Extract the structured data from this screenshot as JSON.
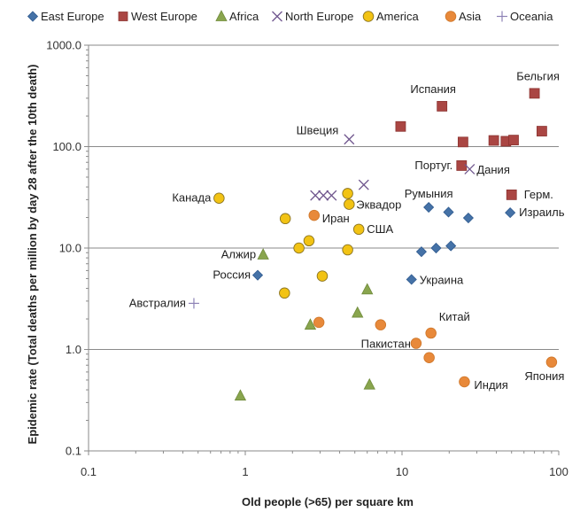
{
  "chart_data": {
    "type": "scatter",
    "title": "",
    "xlabel": "Old people (>65) per square km",
    "ylabel": "Epidemic rate (Total deaths per million by day 28 after the 10th death)",
    "xscale": "log",
    "yscale": "log",
    "xlim": [
      0.1,
      100
    ],
    "ylim": [
      0.1,
      1000
    ],
    "x_ticks": [
      "0.1",
      "1",
      "10",
      "100"
    ],
    "y_ticks": [
      "0.1",
      "1.0",
      "10.0",
      "100.0",
      "1000.0"
    ],
    "grid": "horizontal major gridlines",
    "legend_position": "top",
    "series": [
      {
        "name": "East Europe",
        "marker": "diamond",
        "color": "#4572A7",
        "stroke": "#2f5a8f",
        "points": [
          {
            "x": 1.2,
            "y": 5.4,
            "label": "Россия"
          },
          {
            "x": 11.5,
            "y": 4.9,
            "label": "Украина"
          },
          {
            "x": 13.3,
            "y": 9.2
          },
          {
            "x": 16.5,
            "y": 10.0
          },
          {
            "x": 20.5,
            "y": 10.5
          },
          {
            "x": 14.8,
            "y": 25.2,
            "label": "Румыния"
          },
          {
            "x": 19.8,
            "y": 22.6
          },
          {
            "x": 26.5,
            "y": 19.8
          },
          {
            "x": 49.0,
            "y": 22.3,
            "label": "Израиль"
          }
        ]
      },
      {
        "name": "West Europe",
        "marker": "square",
        "color": "#AA4643",
        "stroke": "#8c3431",
        "points": [
          {
            "x": 9.8,
            "y": 158
          },
          {
            "x": 18.0,
            "y": 250,
            "label": "Испания"
          },
          {
            "x": 70.0,
            "y": 335,
            "label": "Бельгия"
          },
          {
            "x": 24.5,
            "y": 111
          },
          {
            "x": 38.5,
            "y": 115
          },
          {
            "x": 46.0,
            "y": 113
          },
          {
            "x": 51.5,
            "y": 116
          },
          {
            "x": 78.0,
            "y": 142
          },
          {
            "x": 24.0,
            "y": 65,
            "label": "Португ."
          },
          {
            "x": 50.0,
            "y": 33.5,
            "label": "Герм."
          }
        ]
      },
      {
        "name": "Africa",
        "marker": "triangle",
        "color": "#89A54E",
        "stroke": "#6f8a3a",
        "points": [
          {
            "x": 1.3,
            "y": 8.6,
            "label": "Алжир"
          },
          {
            "x": 6.0,
            "y": 3.9
          },
          {
            "x": 5.2,
            "y": 2.3
          },
          {
            "x": 2.6,
            "y": 1.75
          },
          {
            "x": 0.93,
            "y": 0.35
          },
          {
            "x": 6.2,
            "y": 0.45
          }
        ]
      },
      {
        "name": "North Europe",
        "marker": "x",
        "color": "#71588F",
        "stroke": "#71588F",
        "points": [
          {
            "x": 4.6,
            "y": 118,
            "label": "Швеция"
          },
          {
            "x": 27.0,
            "y": 60,
            "label": "Дания"
          },
          {
            "x": 5.7,
            "y": 42
          },
          {
            "x": 2.8,
            "y": 33
          },
          {
            "x": 3.15,
            "y": 33
          },
          {
            "x": 3.55,
            "y": 33
          }
        ]
      },
      {
        "name": "America",
        "marker": "circle",
        "color": "#F2C314",
        "stroke": "#8a7320",
        "points": [
          {
            "x": 0.68,
            "y": 31,
            "label": "Канада"
          },
          {
            "x": 4.5,
            "y": 34.5
          },
          {
            "x": 4.6,
            "y": 27,
            "label": "Эквадор"
          },
          {
            "x": 1.8,
            "y": 19.5
          },
          {
            "x": 5.3,
            "y": 15.3,
            "label": "США"
          },
          {
            "x": 2.55,
            "y": 11.8
          },
          {
            "x": 2.2,
            "y": 10.0
          },
          {
            "x": 4.5,
            "y": 9.6
          },
          {
            "x": 3.1,
            "y": 5.3
          },
          {
            "x": 1.78,
            "y": 3.6
          }
        ]
      },
      {
        "name": "Asia",
        "marker": "circle",
        "color": "#E8893A",
        "stroke": "#d0782c",
        "points": [
          {
            "x": 2.75,
            "y": 21,
            "label": "Иран"
          },
          {
            "x": 2.95,
            "y": 1.85
          },
          {
            "x": 7.3,
            "y": 1.75
          },
          {
            "x": 12.3,
            "y": 1.15,
            "label": "Пакистан"
          },
          {
            "x": 15.3,
            "y": 1.45,
            "label": "Китай"
          },
          {
            "x": 14.9,
            "y": 0.83
          },
          {
            "x": 25.0,
            "y": 0.48,
            "label": "Индия"
          },
          {
            "x": 90.0,
            "y": 0.75,
            "label": "Япония"
          }
        ]
      },
      {
        "name": "Oceania",
        "marker": "plus",
        "color": "#8d82b5",
        "stroke": "#8d82b5",
        "points": [
          {
            "x": 0.47,
            "y": 2.85,
            "label": "Австралия"
          }
        ]
      }
    ]
  }
}
